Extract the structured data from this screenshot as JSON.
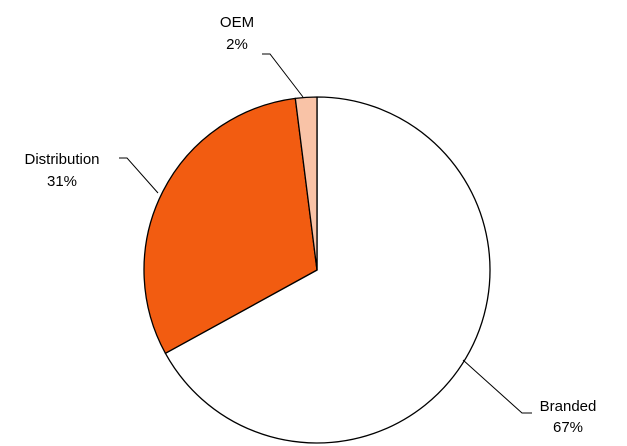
{
  "chart_data": {
    "type": "pie",
    "slices": [
      {
        "label": "Branded",
        "value": 67,
        "value_text": "67%",
        "color": "#ffffff"
      },
      {
        "label": "Distribution",
        "value": 31,
        "value_text": "31%",
        "color": "#f25c11"
      },
      {
        "label": "OEM",
        "value": 2,
        "value_text": "2%",
        "color": "#f9c3a7"
      }
    ],
    "start": "12 o'clock",
    "direction": "clockwise",
    "outline_color": "#000000",
    "legend": "none"
  }
}
